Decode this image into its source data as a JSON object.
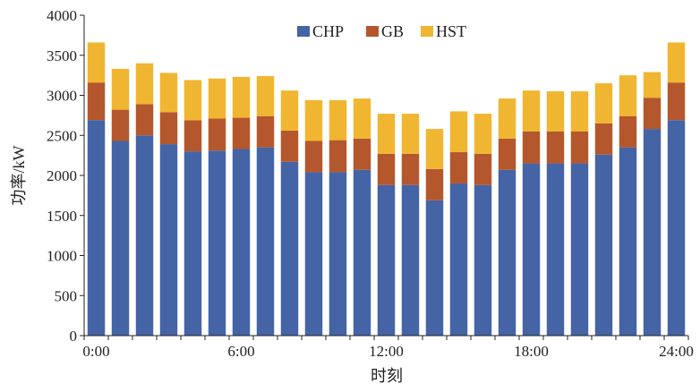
{
  "chart_data": {
    "type": "bar",
    "stacked": true,
    "title": "",
    "xlabel": "时刻",
    "ylabel": "功率/kW",
    "ylim": [
      0,
      4000
    ],
    "yticks": [
      0,
      500,
      1000,
      1500,
      2000,
      2500,
      3000,
      3500,
      4000
    ],
    "xtick_labels": [
      "0:00",
      "6:00",
      "12:00",
      "18:00",
      "24:00"
    ],
    "categories": [
      "0:00",
      "1:00",
      "2:00",
      "3:00",
      "4:00",
      "5:00",
      "6:00",
      "7:00",
      "8:00",
      "9:00",
      "10:00",
      "11:00",
      "12:00",
      "13:00",
      "14:00",
      "15:00",
      "16:00",
      "17:00",
      "18:00",
      "19:00",
      "20:00",
      "21:00",
      "22:00",
      "23:00",
      "24:00"
    ],
    "series": [
      {
        "name": "CHP",
        "color": "#4464a6",
        "values": [
          2690,
          2430,
          2500,
          2390,
          2300,
          2310,
          2330,
          2350,
          2170,
          2040,
          2040,
          2070,
          1880,
          1880,
          1690,
          1900,
          1880,
          2070,
          2150,
          2150,
          2150,
          2260,
          2350,
          2580,
          2690
        ]
      },
      {
        "name": "GB",
        "color": "#b5572d",
        "values": [
          470,
          390,
          390,
          400,
          390,
          400,
          390,
          390,
          390,
          390,
          400,
          390,
          390,
          390,
          390,
          390,
          390,
          390,
          400,
          400,
          400,
          390,
          390,
          390,
          470
        ]
      },
      {
        "name": "HST",
        "color": "#f0b631",
        "values": [
          500,
          510,
          510,
          490,
          500,
          500,
          510,
          500,
          500,
          510,
          500,
          500,
          500,
          500,
          500,
          510,
          500,
          500,
          510,
          500,
          500,
          500,
          510,
          320,
          500
        ]
      }
    ],
    "legend": {
      "position": "top-center",
      "entries": [
        "CHP",
        "GB",
        "HST"
      ]
    }
  }
}
